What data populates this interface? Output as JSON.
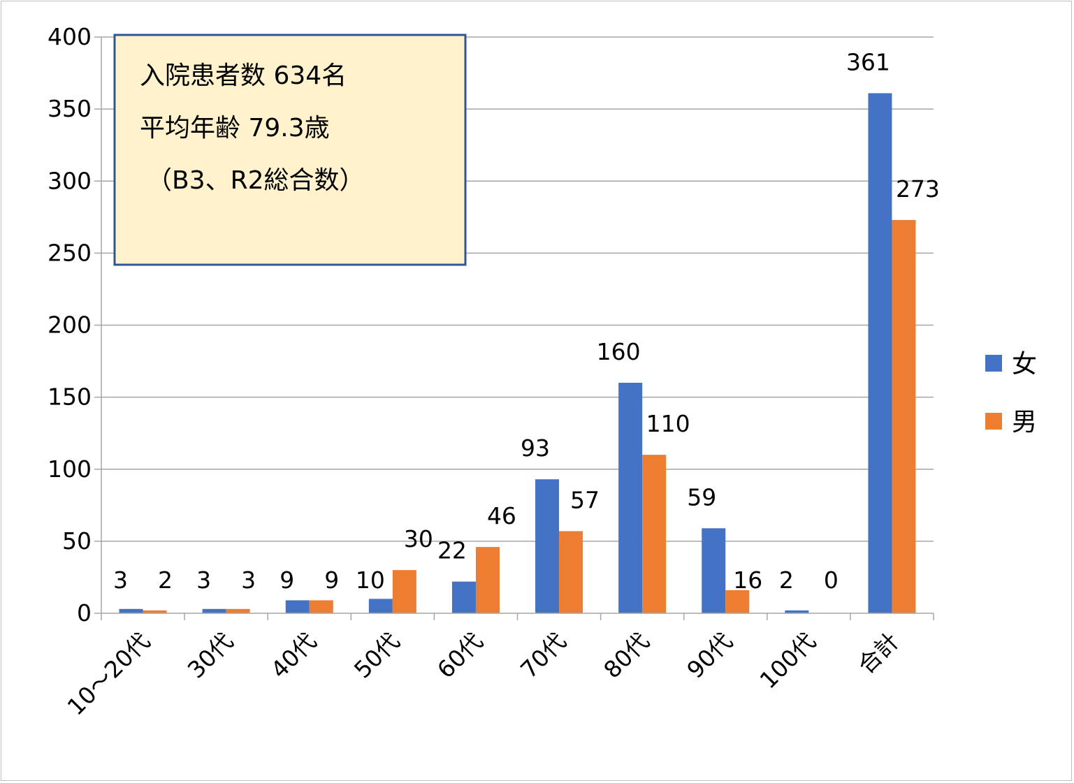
{
  "chart_data": {
    "type": "bar",
    "categories": [
      "10～20代",
      "30代",
      "40代",
      "50代",
      "60代",
      "70代",
      "80代",
      "90代",
      "100代",
      "合計"
    ],
    "series": [
      {
        "name": "女",
        "color": "#4472C4",
        "values": [
          3,
          3,
          9,
          10,
          22,
          93,
          160,
          59,
          2,
          361
        ]
      },
      {
        "name": "男",
        "color": "#ED7D31",
        "values": [
          2,
          3,
          9,
          30,
          46,
          57,
          110,
          16,
          0,
          273
        ]
      }
    ],
    "ylim": [
      0,
      400
    ],
    "yticks": [
      0,
      50,
      100,
      150,
      200,
      250,
      300,
      350,
      400
    ],
    "grid": true,
    "legend_position": "right",
    "annotation": {
      "lines": [
        "入院患者数 634名",
        "平均年齢 79.3歳",
        "（B3、R2総合数）"
      ],
      "background": "#FFF2CC",
      "border": "#2F5597"
    }
  }
}
